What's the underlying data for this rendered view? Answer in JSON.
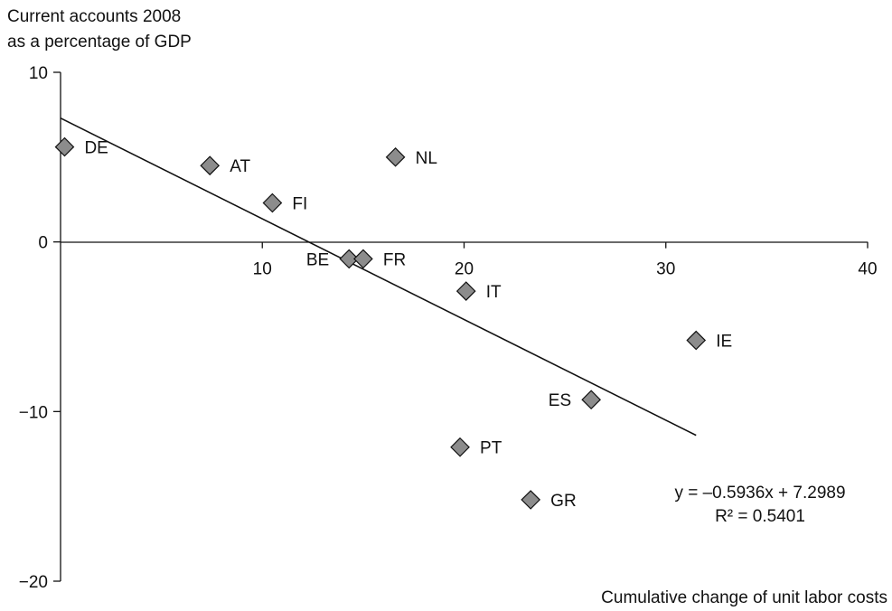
{
  "chart_data": {
    "type": "scatter",
    "ylabel": [
      "Current accounts 2008",
      "as a percentage of GDP"
    ],
    "xlabel": "Cumulative change of unit labor costs",
    "xlim": [
      0,
      40
    ],
    "ylim": [
      -20,
      10
    ],
    "xticks": [
      10,
      20,
      30,
      40
    ],
    "yticks": [
      10,
      0,
      -10,
      -20
    ],
    "ytick_labels": [
      "10",
      "0",
      "−10",
      "−20"
    ],
    "xtick_labels": [
      "10",
      "20",
      "30",
      "40"
    ],
    "points": [
      {
        "label": "DE",
        "x": 0.2,
        "y": 5.6
      },
      {
        "label": "AT",
        "x": 7.4,
        "y": 4.5
      },
      {
        "label": "FI",
        "x": 10.5,
        "y": 2.3
      },
      {
        "label": "NL",
        "x": 16.6,
        "y": 5.0
      },
      {
        "label": "BE",
        "x": 14.3,
        "y": -1.0
      },
      {
        "label": "FR",
        "x": 15.0,
        "y": -1.0
      },
      {
        "label": "IT",
        "x": 20.1,
        "y": -2.9
      },
      {
        "label": "IE",
        "x": 31.5,
        "y": -5.8
      },
      {
        "label": "ES",
        "x": 26.3,
        "y": -9.3
      },
      {
        "label": "PT",
        "x": 19.8,
        "y": -12.1
      },
      {
        "label": "GR",
        "x": 23.3,
        "y": -15.2
      }
    ],
    "trendline": {
      "slope": -0.5936,
      "intercept": 7.2989,
      "x_range": [
        0,
        31.5
      ],
      "equation_text": "y = –0.5936x + 7.2989",
      "r2_text": "R² = 0.5401"
    },
    "grid": false,
    "legend": "none"
  }
}
